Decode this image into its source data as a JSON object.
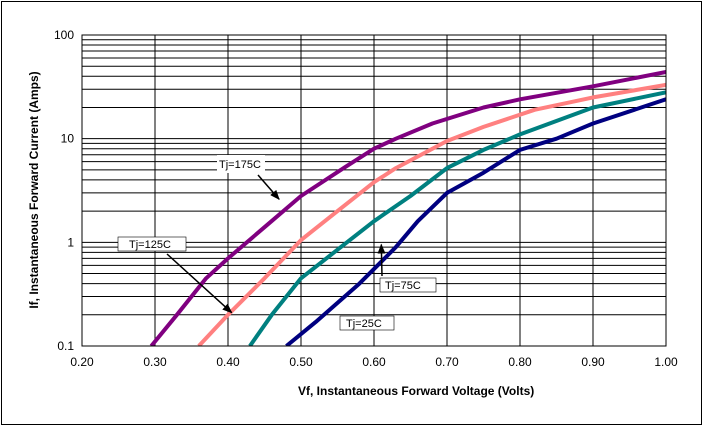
{
  "chart_data": {
    "type": "line",
    "title": "",
    "xlabel": "Vf, Instantaneous Forward  Voltage (Volts)",
    "ylabel": "If, Instantaneous Forward Current (Amps)",
    "xlim": [
      0.2,
      1.0
    ],
    "ylim": [
      0.1,
      100
    ],
    "y_scale": "log",
    "grid": true,
    "legend": "none",
    "x_tick_labels": [
      "0.20",
      "0.30",
      "0.40",
      "0.50",
      "0.60",
      "0.70",
      "0.80",
      "0.90",
      "1.00"
    ],
    "y_tick_labels": [
      "0.1",
      "1",
      "10",
      "100"
    ],
    "series": [
      {
        "name": "Tj=175C",
        "color": "#800080",
        "x": [
          0.295,
          0.33,
          0.37,
          0.4,
          0.45,
          0.5,
          0.56,
          0.6,
          0.63,
          0.68,
          0.75,
          0.8,
          0.9,
          1.0
        ],
        "y": [
          0.1,
          0.2,
          0.45,
          0.7,
          1.4,
          2.8,
          5.3,
          8.0,
          10.0,
          14.0,
          20.0,
          24.0,
          32.0,
          44.0
        ]
      },
      {
        "name": "Tj=125C",
        "color": "#FF8080",
        "x": [
          0.36,
          0.4,
          0.45,
          0.5,
          0.55,
          0.6,
          0.63,
          0.7,
          0.75,
          0.82,
          0.9,
          1.0
        ],
        "y": [
          0.1,
          0.2,
          0.45,
          1.05,
          2.0,
          3.8,
          5.2,
          9.5,
          13.0,
          19.0,
          25.0,
          33.0
        ]
      },
      {
        "name": "Tj=75C",
        "color": "#008080",
        "x": [
          0.43,
          0.46,
          0.5,
          0.55,
          0.6,
          0.65,
          0.7,
          0.75,
          0.8,
          0.9,
          1.0
        ],
        "y": [
          0.1,
          0.2,
          0.45,
          0.85,
          1.6,
          2.8,
          5.2,
          7.8,
          11.0,
          20.0,
          28.0
        ]
      },
      {
        "name": "Tj=25C",
        "color": "#000080",
        "x": [
          0.48,
          0.52,
          0.58,
          0.63,
          0.66,
          0.7,
          0.75,
          0.8,
          0.85,
          0.9,
          1.0
        ],
        "y": [
          0.1,
          0.17,
          0.4,
          0.9,
          1.6,
          3.0,
          4.7,
          7.8,
          10.0,
          14.0,
          24.0
        ]
      }
    ],
    "annotations": [
      {
        "text": "Tj=175C",
        "arrow_to": [
          0.47,
          2.6
        ]
      },
      {
        "text": "Tj=125C",
        "arrow_to": [
          0.405,
          0.21
        ]
      },
      {
        "text": "Tj=75C",
        "arrow_to": [
          0.61,
          0.95
        ]
      },
      {
        "text": "Tj=25C",
        "arrow_to": null
      }
    ]
  }
}
